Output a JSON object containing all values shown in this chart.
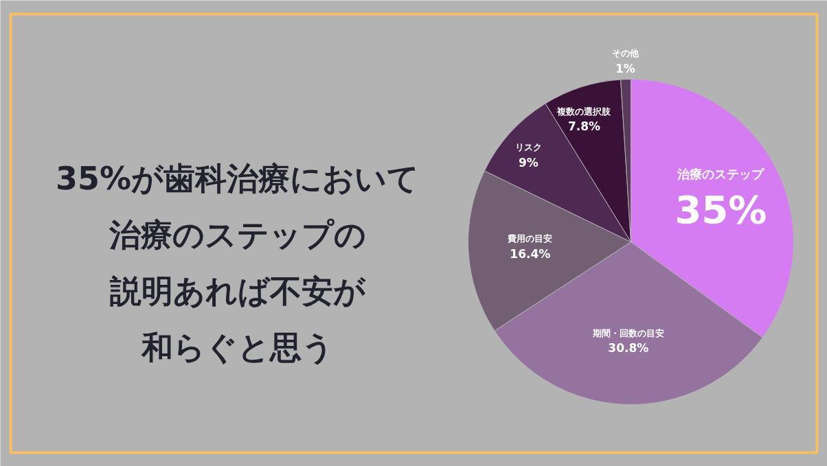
{
  "chart_data": {
    "type": "pie",
    "title": "35%が歯科治療において治療のステップの説明あれば不安が和らぐと思う",
    "categories": [
      "治療のステップ",
      "期間・回数の目安",
      "費用の目安",
      "リスク",
      "複数の選択肢",
      "その他"
    ],
    "values": [
      35,
      30.8,
      16.4,
      9,
      7.8,
      1
    ],
    "colors": [
      "#d67cf2",
      "#94739e",
      "#735f73",
      "#4e2a52",
      "#3a1238",
      "#5a3a5a"
    ],
    "value_labels": [
      "35%",
      "30.8%",
      "16.4%",
      "9%",
      "7.8%",
      "1%"
    ]
  }
}
